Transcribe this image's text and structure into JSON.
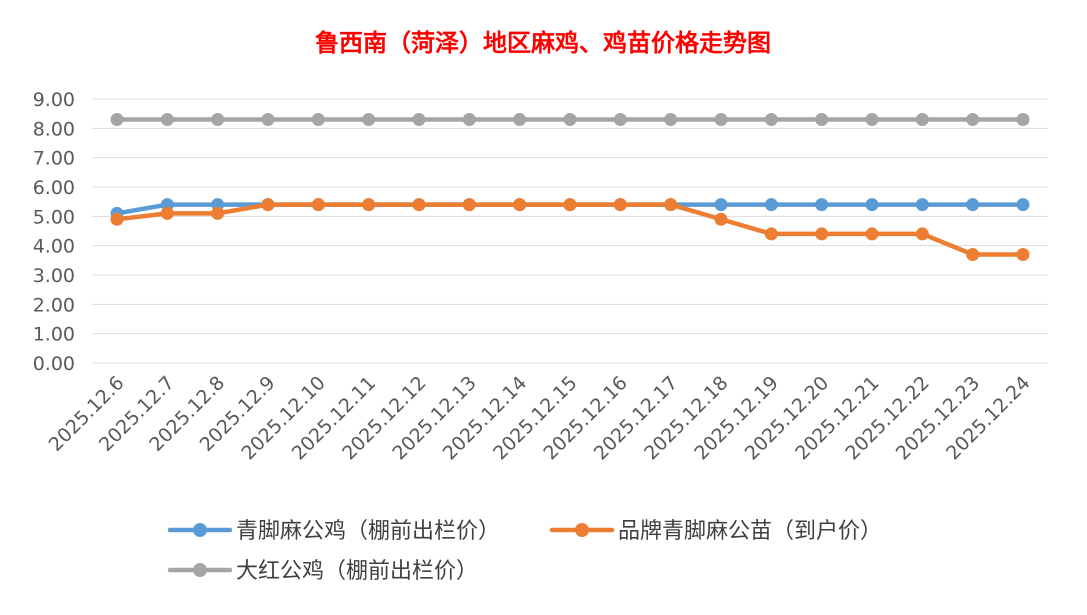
{
  "chart_data": {
    "type": "line",
    "title": "鲁西南（菏泽）地区麻鸡、鸡苗价格走势图",
    "categories": [
      "2025.12.6",
      "2025.12.7",
      "2025.12.8",
      "2025.12.9",
      "2025.12.10",
      "2025.12.11",
      "2025.12.12",
      "2025.12.13",
      "2025.12.14",
      "2025.12.15",
      "2025.12.16",
      "2025.12.17",
      "2025.12.18",
      "2025.12.19",
      "2025.12.20",
      "2025.12.21",
      "2025.12.22",
      "2025.12.23",
      "2025.12.24"
    ],
    "series": [
      {
        "name": "青脚麻公鸡（棚前出栏价）",
        "color": "#5b9bd5",
        "values": [
          5.1,
          5.4,
          5.4,
          5.4,
          5.4,
          5.4,
          5.4,
          5.4,
          5.4,
          5.4,
          5.4,
          5.4,
          5.4,
          5.4,
          5.4,
          5.4,
          5.4,
          5.4,
          5.4
        ]
      },
      {
        "name": "品牌青脚麻公苗（到户价）",
        "color": "#ed7d31",
        "values": [
          4.9,
          5.1,
          5.1,
          5.4,
          5.4,
          5.4,
          5.4,
          5.4,
          5.4,
          5.4,
          5.4,
          5.4,
          4.9,
          4.4,
          4.4,
          4.4,
          4.4,
          3.7,
          3.7
        ]
      },
      {
        "name": "大红公鸡（棚前出栏价）",
        "color": "#a5a5a5",
        "values": [
          8.3,
          8.3,
          8.3,
          8.3,
          8.3,
          8.3,
          8.3,
          8.3,
          8.3,
          8.3,
          8.3,
          8.3,
          8.3,
          8.3,
          8.3,
          8.3,
          8.3,
          8.3,
          8.3
        ]
      }
    ],
    "ylim": [
      0,
      9
    ],
    "yticks": [
      "0.00",
      "1.00",
      "2.00",
      "3.00",
      "4.00",
      "5.00",
      "6.00",
      "7.00",
      "8.00",
      "9.00"
    ],
    "grid": true,
    "legend_position": "bottom",
    "title_color": "#ff0000"
  }
}
